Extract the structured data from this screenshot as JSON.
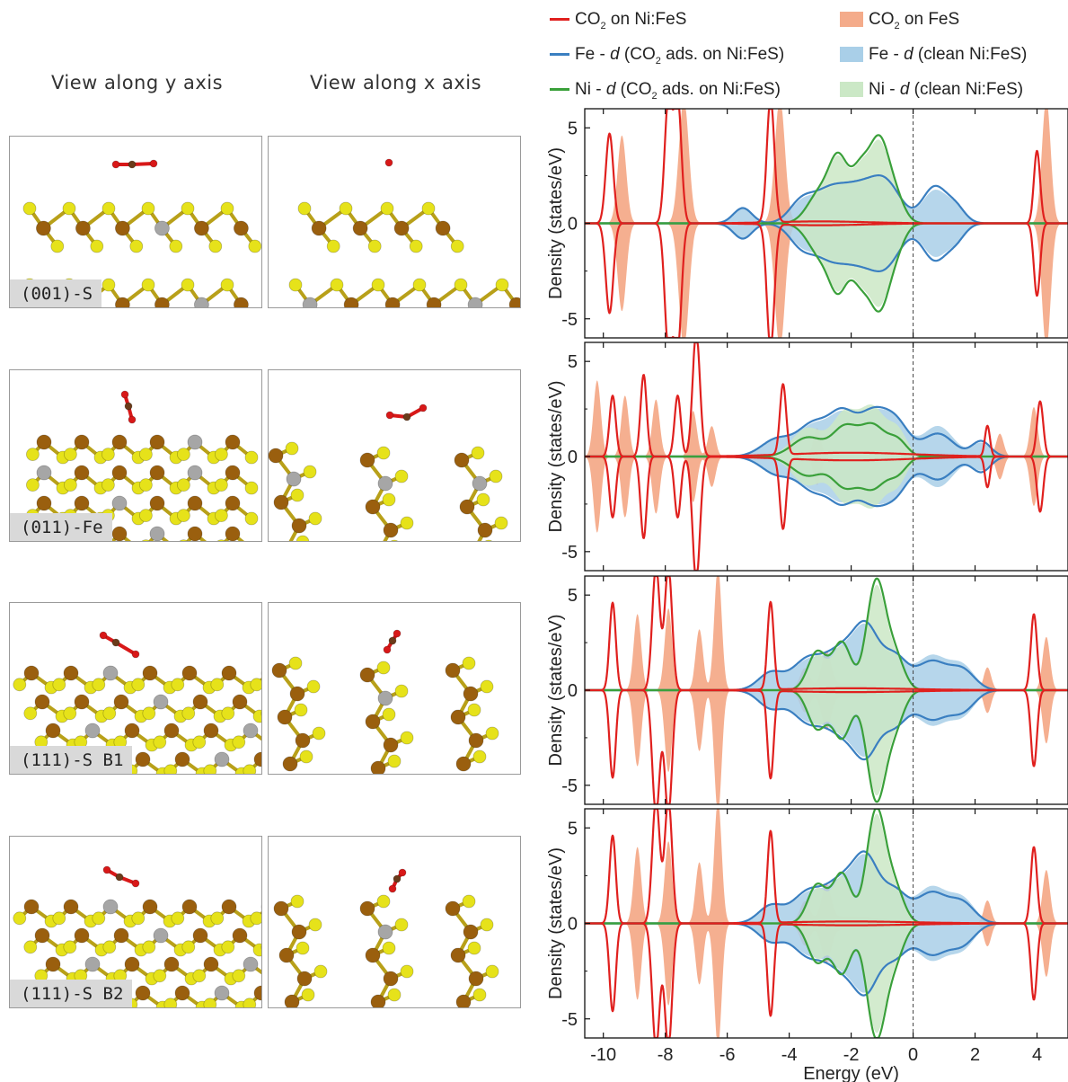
{
  "headers": {
    "y_view": "View along y axis",
    "x_view": "View along x axis"
  },
  "surfaces": [
    "(001)-S",
    "(011)-Fe",
    "(111)-S B1",
    "(111)-S B2"
  ],
  "legend": {
    "co2_nifes_pre": "CO",
    "co2_nifes_post": " on Ni:FeS",
    "co2_fes_pre": "CO",
    "co2_fes_post": " on FeS",
    "fe_ads_a": "Fe - ",
    "fe_ads_b": "d",
    "fe_ads_c": " (CO",
    "fe_ads_d": " ads. on Ni:FeS)",
    "fe_clean_a": "Fe - ",
    "fe_clean_b": "d",
    "fe_clean_c": " (clean Ni:FeS)",
    "ni_ads_a": "Ni - ",
    "ni_ads_b": "d",
    "ni_ads_c": " (CO",
    "ni_ads_d": " ads. on Ni:FeS)",
    "ni_clean_a": "Ni - ",
    "ni_clean_b": "d",
    "ni_clean_c": " (clean Ni:FeS)",
    "sub2": "2"
  },
  "colors": {
    "co2_nifes": "#e0201e",
    "co2_fes": "#f4ab8a",
    "fe_line": "#3a7fc1",
    "fe_fill": "#a9cfe8",
    "ni_line": "#3aa03a",
    "ni_fill": "#cbe8c6",
    "s_atom": "#e6e21a",
    "fe_atom": "#9a5f0e",
    "ni_atom": "#a6a6a6",
    "o_atom": "#d81818",
    "c_atom": "#6b3b1a"
  },
  "chart_data": {
    "type": "area",
    "xlabel": "Energy (eV)",
    "ylabel": "Density (states/eV)",
    "xlim": [
      -10.6,
      5.0
    ],
    "ylim": [
      -6,
      6
    ],
    "xticks": [
      "-10",
      "-8",
      "-6",
      "-4",
      "-2",
      "0",
      "2",
      "4"
    ],
    "yticks": [
      "5",
      "0",
      "-5"
    ],
    "fermi_level": 0,
    "series_names": [
      "CO2 on Ni:FeS",
      "CO2 on FeS",
      "Fe - d (CO2 ads. on Ni:FeS)",
      "Fe - d (clean Ni:FeS)",
      "Ni - d (CO2 ads. on Ni:FeS)",
      "Ni - d (clean Ni:FeS)"
    ],
    "panels": [
      {
        "surface": "(001)-S",
        "co2_nifes": [
          [
            -9.8,
            4.7,
            0.12
          ],
          [
            -7.9,
            6.5,
            0.12
          ],
          [
            -7.6,
            6.5,
            0.12
          ],
          [
            -4.6,
            6.5,
            0.12
          ],
          [
            4.0,
            3.8,
            0.1
          ],
          [
            -3.0,
            0.1,
            1.5
          ]
        ],
        "co2_fes": [
          [
            -9.4,
            4.6,
            0.14
          ],
          [
            -7.4,
            6.5,
            0.16
          ],
          [
            -4.3,
            6.5,
            0.16
          ],
          [
            4.3,
            6.5,
            0.14
          ],
          [
            -3.0,
            0.1,
            1.5
          ]
        ],
        "fe_ads": [
          [
            -5.5,
            0.8,
            0.3
          ],
          [
            -3.6,
            1.1,
            0.4
          ],
          [
            -2.7,
            1.6,
            0.5
          ],
          [
            -1.8,
            1.5,
            0.5
          ],
          [
            -0.9,
            2.1,
            0.5
          ],
          [
            0.7,
            1.9,
            0.4
          ],
          [
            1.4,
            0.7,
            0.3
          ]
        ],
        "fe_clean": [
          [
            -5.5,
            0.8,
            0.3
          ],
          [
            -3.6,
            1.0,
            0.4
          ],
          [
            -2.7,
            1.5,
            0.5
          ],
          [
            -1.8,
            1.5,
            0.5
          ],
          [
            -0.9,
            2.0,
            0.5
          ],
          [
            0.7,
            1.7,
            0.4
          ],
          [
            1.4,
            0.7,
            0.3
          ]
        ],
        "ni_ads": [
          [
            -3.0,
            1.6,
            0.4
          ],
          [
            -2.4,
            3.0,
            0.3
          ],
          [
            -1.7,
            2.7,
            0.3
          ],
          [
            -1.1,
            3.9,
            0.3
          ],
          [
            -0.6,
            1.4,
            0.3
          ]
        ],
        "ni_clean": [
          [
            -3.0,
            1.5,
            0.4
          ],
          [
            -2.4,
            2.9,
            0.3
          ],
          [
            -1.7,
            2.6,
            0.3
          ],
          [
            -1.1,
            3.7,
            0.3
          ],
          [
            -0.6,
            1.3,
            0.3
          ]
        ]
      },
      {
        "surface": "(011)-Fe",
        "co2_nifes": [
          [
            -9.7,
            3.2,
            0.1
          ],
          [
            -8.7,
            4.3,
            0.1
          ],
          [
            -7.6,
            3.2,
            0.1
          ],
          [
            -7.0,
            6.5,
            0.12
          ],
          [
            -4.2,
            3.7,
            0.1
          ],
          [
            2.4,
            1.6,
            0.08
          ],
          [
            4.1,
            2.9,
            0.1
          ],
          [
            -2.0,
            0.2,
            2.0
          ]
        ],
        "co2_fes": [
          [
            -10.2,
            4.0,
            0.12
          ],
          [
            -9.3,
            3.2,
            0.12
          ],
          [
            -8.3,
            3.0,
            0.12
          ],
          [
            -7.1,
            2.4,
            0.12
          ],
          [
            -6.5,
            1.6,
            0.12
          ],
          [
            -3.1,
            1.5,
            0.12
          ],
          [
            2.8,
            1.2,
            0.12
          ],
          [
            3.9,
            2.6,
            0.12
          ]
        ],
        "fe_ads": [
          [
            -4.4,
            0.9,
            0.5
          ],
          [
            -3.2,
            1.7,
            0.5
          ],
          [
            -2.3,
            1.9,
            0.4
          ],
          [
            -1.3,
            2.3,
            0.5
          ],
          [
            -0.5,
            1.4,
            0.4
          ],
          [
            0.8,
            1.2,
            0.5
          ],
          [
            2.2,
            0.8,
            0.3
          ]
        ],
        "fe_clean": [
          [
            -4.4,
            0.9,
            0.5
          ],
          [
            -3.2,
            1.6,
            0.5
          ],
          [
            -2.3,
            1.8,
            0.4
          ],
          [
            -1.3,
            2.2,
            0.5
          ],
          [
            -0.5,
            1.4,
            0.4
          ],
          [
            0.8,
            1.6,
            0.5
          ],
          [
            2.2,
            0.7,
            0.3
          ]
        ],
        "ni_ads": [
          [
            -3.4,
            1.0,
            0.5
          ],
          [
            -2.2,
            1.5,
            0.4
          ],
          [
            -1.3,
            1.6,
            0.4
          ],
          [
            -0.5,
            0.8,
            0.3
          ]
        ],
        "ni_clean": [
          [
            -3.4,
            1.5,
            0.5
          ],
          [
            -2.2,
            2.2,
            0.4
          ],
          [
            -1.3,
            2.5,
            0.4
          ],
          [
            -0.5,
            1.3,
            0.3
          ]
        ]
      },
      {
        "surface": "(111)-S B1",
        "co2_nifes": [
          [
            -9.7,
            4.6,
            0.1
          ],
          [
            -8.3,
            6.5,
            0.12
          ],
          [
            -7.9,
            6.5,
            0.12
          ],
          [
            -4.6,
            4.6,
            0.1
          ],
          [
            3.9,
            4.0,
            0.1
          ],
          [
            -2.0,
            0.1,
            2.0
          ]
        ],
        "co2_fes": [
          [
            -8.9,
            4.0,
            0.12
          ],
          [
            -7.9,
            4.3,
            0.12
          ],
          [
            -6.9,
            3.2,
            0.12
          ],
          [
            -6.3,
            6.5,
            0.12
          ],
          [
            -3.5,
            1.0,
            0.15
          ],
          [
            -2.8,
            1.8,
            0.15
          ],
          [
            2.4,
            1.2,
            0.12
          ],
          [
            4.3,
            2.8,
            0.12
          ],
          [
            -2.0,
            0.35,
            1.2
          ]
        ],
        "fe_ads": [
          [
            -4.6,
            0.9,
            0.4
          ],
          [
            -3.4,
            1.6,
            0.5
          ],
          [
            -2.3,
            2.0,
            0.5
          ],
          [
            -1.5,
            2.9,
            0.4
          ],
          [
            -0.6,
            1.7,
            0.4
          ],
          [
            0.6,
            1.5,
            0.5
          ],
          [
            1.6,
            1.0,
            0.4
          ]
        ],
        "fe_clean": [
          [
            -4.6,
            0.9,
            0.4
          ],
          [
            -3.4,
            1.5,
            0.5
          ],
          [
            -2.3,
            1.9,
            0.5
          ],
          [
            -1.5,
            2.8,
            0.4
          ],
          [
            -0.6,
            1.6,
            0.4
          ],
          [
            0.6,
            1.8,
            0.5
          ],
          [
            1.6,
            1.2,
            0.4
          ]
        ],
        "ni_ads": [
          [
            -3.1,
            2.0,
            0.3
          ],
          [
            -2.3,
            2.5,
            0.3
          ],
          [
            -1.2,
            5.6,
            0.3
          ],
          [
            -0.6,
            1.8,
            0.3
          ]
        ],
        "ni_clean": [
          [
            -3.1,
            1.8,
            0.3
          ],
          [
            -2.3,
            2.3,
            0.3
          ],
          [
            -1.2,
            5.3,
            0.3
          ],
          [
            -0.6,
            1.6,
            0.3
          ]
        ]
      },
      {
        "surface": "(111)-S B2",
        "co2_nifes": [
          [
            -9.7,
            4.6,
            0.1
          ],
          [
            -8.3,
            6.5,
            0.12
          ],
          [
            -7.9,
            6.5,
            0.12
          ],
          [
            -4.6,
            4.8,
            0.1
          ],
          [
            3.9,
            4.0,
            0.1
          ],
          [
            -2.0,
            0.1,
            2.0
          ]
        ],
        "co2_fes": [
          [
            -8.9,
            4.0,
            0.12
          ],
          [
            -7.9,
            4.3,
            0.12
          ],
          [
            -6.9,
            3.2,
            0.12
          ],
          [
            -6.3,
            6.5,
            0.12
          ],
          [
            -3.5,
            1.0,
            0.15
          ],
          [
            -2.8,
            1.8,
            0.15
          ],
          [
            2.4,
            1.2,
            0.12
          ],
          [
            4.3,
            2.8,
            0.12
          ],
          [
            -2.0,
            0.35,
            1.2
          ]
        ],
        "fe_ads": [
          [
            -4.6,
            0.9,
            0.4
          ],
          [
            -3.4,
            1.6,
            0.5
          ],
          [
            -2.3,
            2.1,
            0.5
          ],
          [
            -1.5,
            3.0,
            0.4
          ],
          [
            -0.6,
            1.6,
            0.4
          ],
          [
            0.6,
            1.6,
            0.5
          ],
          [
            1.6,
            1.0,
            0.4
          ]
        ],
        "fe_clean": [
          [
            -4.6,
            0.9,
            0.4
          ],
          [
            -3.4,
            1.5,
            0.5
          ],
          [
            -2.3,
            2.0,
            0.5
          ],
          [
            -1.5,
            2.9,
            0.4
          ],
          [
            -0.6,
            1.5,
            0.4
          ],
          [
            0.6,
            1.9,
            0.5
          ],
          [
            1.6,
            1.2,
            0.4
          ]
        ],
        "ni_ads": [
          [
            -3.1,
            2.0,
            0.3
          ],
          [
            -2.3,
            2.6,
            0.3
          ],
          [
            -1.2,
            5.8,
            0.3
          ],
          [
            -0.6,
            1.8,
            0.3
          ]
        ],
        "ni_clean": [
          [
            -3.1,
            1.8,
            0.3
          ],
          [
            -2.3,
            2.4,
            0.3
          ],
          [
            -1.2,
            5.5,
            0.3
          ],
          [
            -0.6,
            1.6,
            0.3
          ]
        ]
      }
    ]
  }
}
